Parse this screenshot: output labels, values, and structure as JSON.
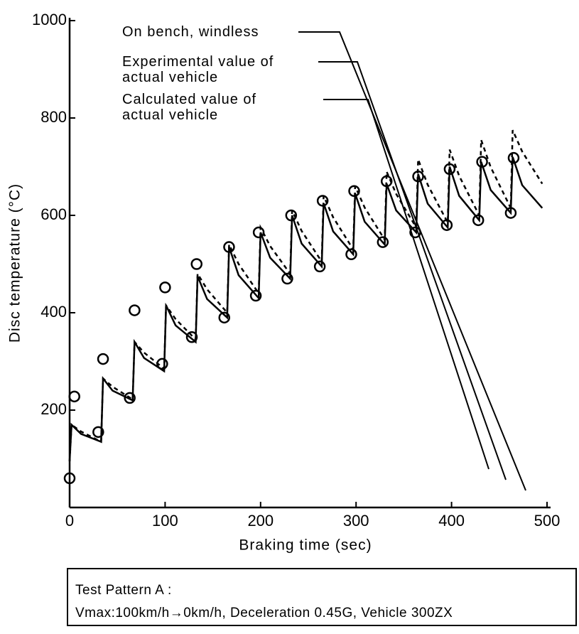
{
  "chart_data": {
    "type": "line",
    "xlabel": "Braking time (sec)",
    "ylabel": "Disc temperature (°C)",
    "xlim": [
      0,
      500
    ],
    "xticks": [
      0,
      100,
      200,
      300,
      400,
      500
    ],
    "ylim": [
      0,
      1000
    ],
    "yticks": [
      200,
      400,
      600,
      800,
      1000
    ],
    "series": [
      {
        "name": "On bench, windless",
        "style": "dashed",
        "color": "#000000",
        "x": [
          0,
          2,
          12,
          33,
          35,
          45,
          66,
          68,
          78,
          99,
          101,
          111,
          132,
          134,
          144,
          165,
          167,
          177,
          198,
          200,
          210,
          231,
          233,
          243,
          264,
          266,
          276,
          297,
          299,
          309,
          330,
          332,
          342,
          363,
          365,
          375,
          396,
          398,
          408,
          429,
          431,
          441,
          462,
          464,
          474,
          495
        ],
        "values": [
          95,
          170,
          156,
          135,
          265,
          248,
          222,
          340,
          318,
          285,
          415,
          387,
          345,
          480,
          448,
          400,
          540,
          500,
          440,
          575,
          537,
          480,
          610,
          568,
          505,
          640,
          596,
          530,
          660,
          616,
          550,
          690,
          644,
          575,
          715,
          663,
          585,
          735,
          681,
          600,
          755,
          699,
          615,
          775,
          731,
          665
        ]
      },
      {
        "name": "Experimental value of actual vehicle",
        "style": "markers",
        "color": "#000000",
        "x": [
          0,
          5,
          30,
          35,
          63,
          68,
          97,
          100,
          128,
          133,
          162,
          167,
          195,
          198,
          228,
          232,
          262,
          265,
          295,
          298,
          328,
          332,
          362,
          365,
          395,
          398,
          428,
          432,
          462,
          465
        ],
        "values": [
          60,
          228,
          155,
          305,
          225,
          405,
          295,
          452,
          350,
          500,
          390,
          535,
          435,
          565,
          470,
          600,
          495,
          630,
          520,
          650,
          545,
          670,
          565,
          680,
          580,
          695,
          590,
          710,
          605,
          718
        ]
      },
      {
        "name": "Calculated value of actual vehicle",
        "style": "solid",
        "color": "#000000",
        "x": [
          0,
          2,
          12,
          33,
          35,
          45,
          66,
          68,
          78,
          99,
          101,
          111,
          132,
          134,
          144,
          165,
          167,
          177,
          198,
          200,
          210,
          231,
          233,
          243,
          264,
          266,
          276,
          297,
          299,
          309,
          330,
          332,
          342,
          363,
          365,
          375,
          396,
          398,
          408,
          429,
          431,
          441,
          462,
          464,
          474,
          495
        ],
        "values": [
          95,
          170,
          151,
          135,
          265,
          240,
          220,
          340,
          307,
          280,
          415,
          374,
          340,
          475,
          428,
          390,
          535,
          477,
          430,
          565,
          513,
          470,
          600,
          542,
          495,
          625,
          567,
          520,
          645,
          587,
          540,
          665,
          610,
          565,
          685,
          624,
          575,
          700,
          640,
          590,
          710,
          652,
          605,
          720,
          662,
          615
        ]
      }
    ],
    "notes": [
      "Test Pattern A :",
      "Vmax:100km/h→0km/h, Deceleration 0.45G, Vehicle 300ZX"
    ]
  }
}
